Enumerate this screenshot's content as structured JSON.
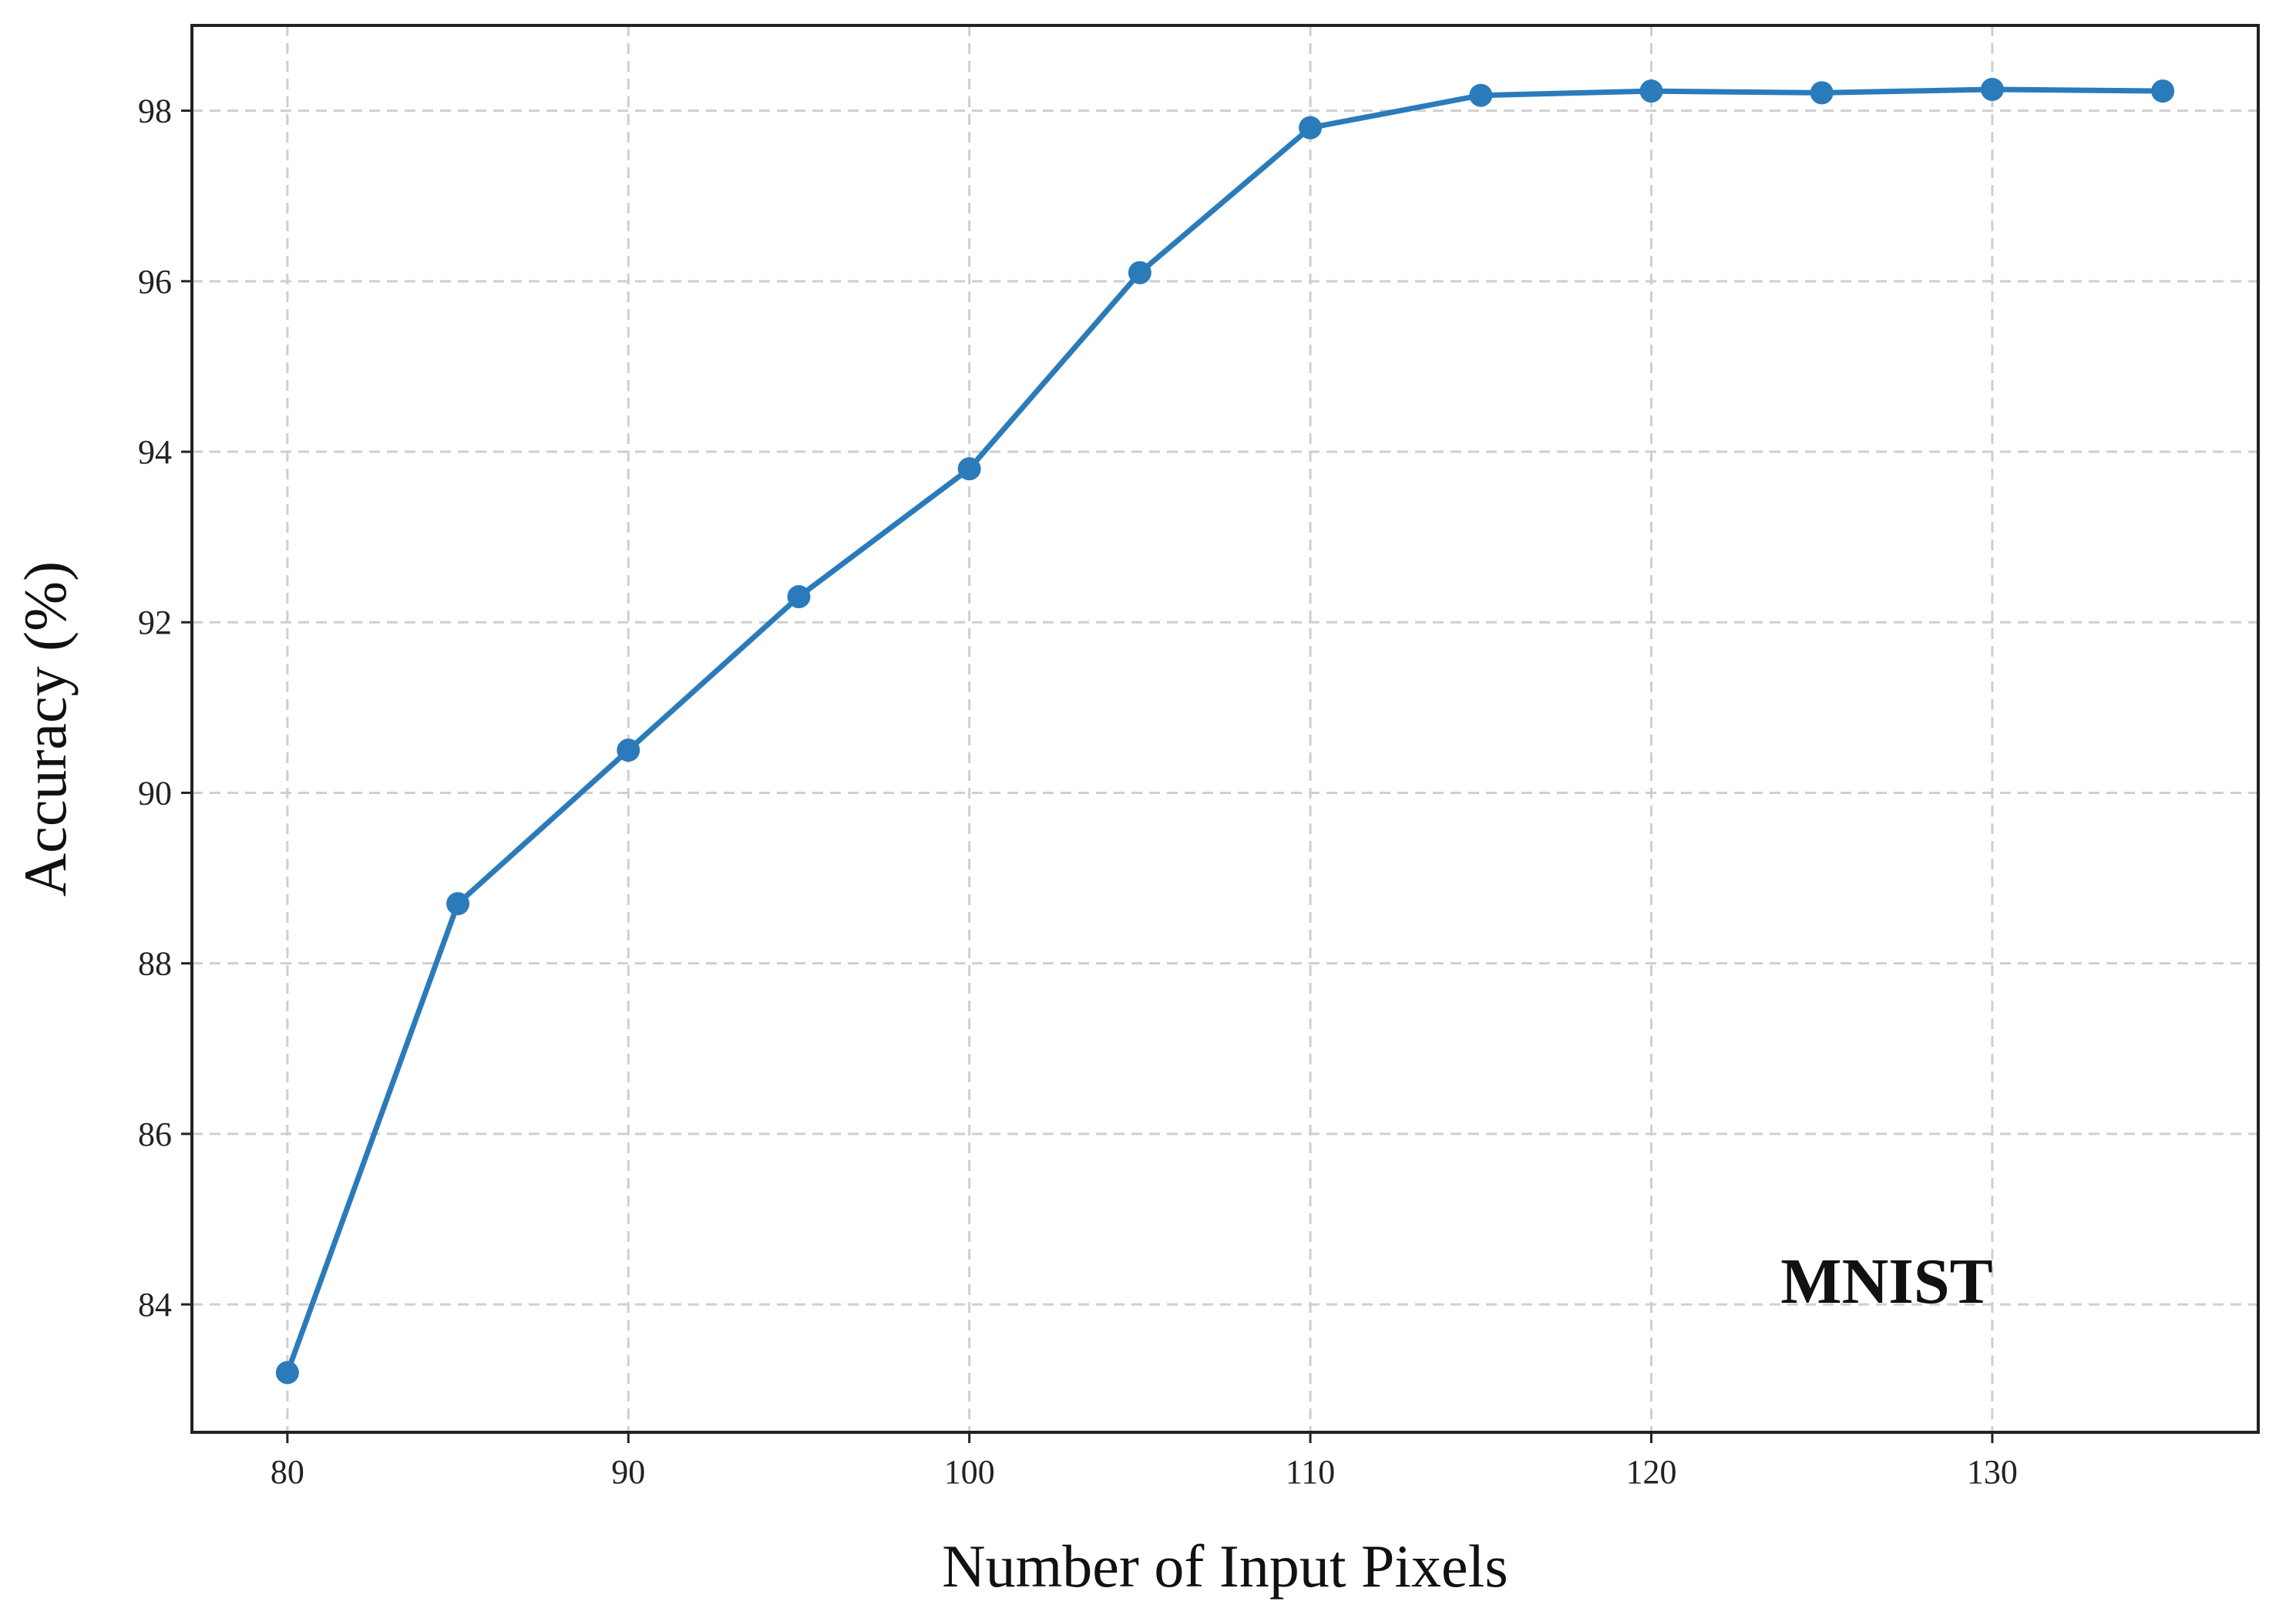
{
  "chart_data": {
    "type": "line",
    "title": "",
    "xlabel": "Number of Input Pixels",
    "ylabel": "Accuracy (%)",
    "xlim": [
      77.2,
      137.8
    ],
    "ylim": [
      82.5,
      99.0
    ],
    "xticks": [
      80,
      90,
      100,
      110,
      120,
      130
    ],
    "yticks": [
      84,
      86,
      88,
      90,
      92,
      94,
      96,
      98
    ],
    "grid": true,
    "legend": "none",
    "annotation": "MNIST",
    "series": [
      {
        "color": "#2b7bba",
        "marker": "circle",
        "x": [
          80,
          85,
          90,
          95,
          100,
          105,
          110,
          115,
          120,
          125,
          130,
          135
        ],
        "y": [
          83.2,
          88.7,
          90.5,
          92.3,
          93.8,
          96.1,
          97.8,
          98.18,
          98.23,
          98.21,
          98.25,
          98.23
        ]
      }
    ]
  }
}
